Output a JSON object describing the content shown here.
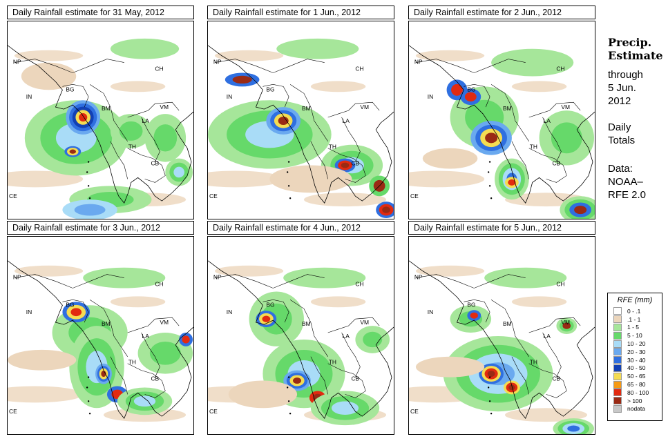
{
  "panels": [
    {
      "title": "Daily Rainfall estimate for  31 May, 2012"
    },
    {
      "title": "Daily Rainfall estimate for  1 Jun., 2012"
    },
    {
      "title": "Daily Rainfall estimate for  2 Jun., 2012"
    },
    {
      "title": "Daily Rainfall estimate for  3 Jun., 2012"
    },
    {
      "title": "Daily Rainfall estimate for  4 Jun., 2012"
    },
    {
      "title": "Daily Rainfall estimate for  5 Jun., 2012"
    }
  ],
  "country_labels": [
    "NP",
    "CH",
    "IN",
    "BG",
    "BM",
    "VM",
    "LA",
    "TH",
    "CB",
    "CE"
  ],
  "sidebar": {
    "title_line1": "Precip.",
    "title_line2": "Estimate",
    "through": "through",
    "date_line1": "5 Jun.",
    "date_line2": "2012",
    "daily_line1": "Daily",
    "daily_line2": "Totals",
    "data_line1": "Data:",
    "data_line2": "NOAA–",
    "data_line3": "RFE 2.0"
  },
  "legend": {
    "title": "RFE (mm)",
    "items": [
      {
        "label": "0 - .1",
        "color": "#ffffff"
      },
      {
        "label": ".1 - 1",
        "color": "#ecd6bc"
      },
      {
        "label": "1 - 5",
        "color": "#a6e69a"
      },
      {
        "label": "5 - 10",
        "color": "#66d96a"
      },
      {
        "label": "10 - 20",
        "color": "#a9dcf7"
      },
      {
        "label": "20 - 30",
        "color": "#6aa9ef"
      },
      {
        "label": "30 - 40",
        "color": "#2f6fe0"
      },
      {
        "label": "40 - 50",
        "color": "#1240b4"
      },
      {
        "label": "50 - 65",
        "color": "#f5dc52"
      },
      {
        "label": "65 - 80",
        "color": "#f59a14"
      },
      {
        "label": "80 - 100",
        "color": "#e22a10"
      },
      {
        "label": "> 100",
        "color": "#9a2a14"
      },
      {
        "label": "nodata",
        "color": "#c8c8c8"
      }
    ]
  }
}
